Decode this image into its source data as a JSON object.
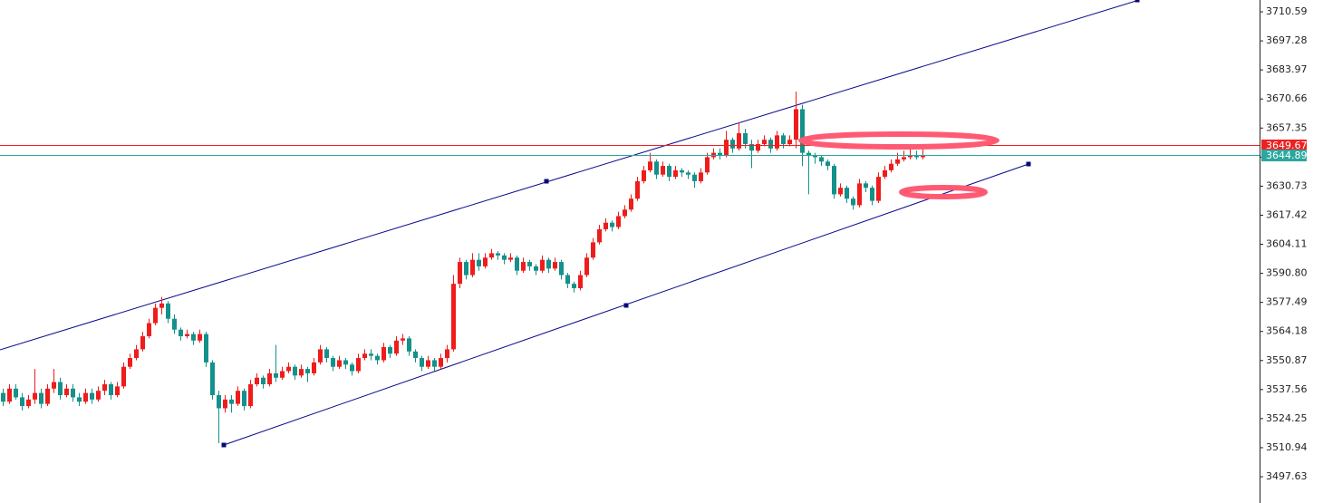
{
  "chart_data": {
    "type": "candlestick",
    "ohlc": [
      [
        3536,
        3538,
        3530,
        3532
      ],
      [
        3532,
        3540,
        3531,
        3538
      ],
      [
        3538,
        3540,
        3533,
        3534
      ],
      [
        3534,
        3536,
        3528,
        3530
      ],
      [
        3530,
        3535,
        3529,
        3533
      ],
      [
        3533,
        3547,
        3531,
        3536
      ],
      [
        3536,
        3538,
        3529,
        3531
      ],
      [
        3531,
        3540,
        3530,
        3538
      ],
      [
        3538,
        3547,
        3536,
        3541
      ],
      [
        3541,
        3543,
        3533,
        3535
      ],
      [
        3535,
        3540,
        3534,
        3538
      ],
      [
        3538,
        3540,
        3532,
        3534
      ],
      [
        3534,
        3536,
        3530,
        3532
      ],
      [
        3532,
        3538,
        3531,
        3536
      ],
      [
        3536,
        3538,
        3531,
        3533
      ],
      [
        3533,
        3539,
        3532,
        3537
      ],
      [
        3537,
        3542,
        3535,
        3540
      ],
      [
        3540,
        3541,
        3533,
        3535
      ],
      [
        3535,
        3541,
        3534,
        3539
      ],
      [
        3539,
        3550,
        3538,
        3548
      ],
      [
        3548,
        3554,
        3547,
        3552
      ],
      [
        3552,
        3558,
        3551,
        3556
      ],
      [
        3556,
        3564,
        3555,
        3562
      ],
      [
        3562,
        3570,
        3561,
        3568
      ],
      [
        3568,
        3577,
        3567,
        3575
      ],
      [
        3575,
        3580,
        3572,
        3577
      ],
      [
        3577,
        3578,
        3568,
        3570
      ],
      [
        3570,
        3572,
        3563,
        3565
      ],
      [
        3565,
        3566,
        3560,
        3562
      ],
      [
        3562,
        3565,
        3561,
        3563
      ],
      [
        3563,
        3564,
        3558,
        3560
      ],
      [
        3560,
        3565,
        3559,
        3563
      ],
      [
        3563,
        3564,
        3548,
        3550
      ],
      [
        3550,
        3551,
        3533,
        3535
      ],
      [
        3535,
        3537,
        3513,
        3529
      ],
      [
        3529,
        3535,
        3527,
        3533
      ],
      [
        3533,
        3535,
        3527,
        3531
      ],
      [
        3531,
        3539,
        3530,
        3537
      ],
      [
        3537,
        3538,
        3528,
        3530
      ],
      [
        3530,
        3542,
        3529,
        3540
      ],
      [
        3540,
        3545,
        3539,
        3543
      ],
      [
        3543,
        3544,
        3538,
        3540
      ],
      [
        3540,
        3547,
        3539,
        3545
      ],
      [
        3545,
        3558,
        3541,
        3543
      ],
      [
        3543,
        3548,
        3542,
        3546
      ],
      [
        3546,
        3550,
        3545,
        3548
      ],
      [
        3548,
        3549,
        3542,
        3544
      ],
      [
        3544,
        3549,
        3543,
        3547
      ],
      [
        3547,
        3548,
        3541,
        3545
      ],
      [
        3545,
        3552,
        3544,
        3550
      ],
      [
        3550,
        3558,
        3549,
        3556
      ],
      [
        3556,
        3557,
        3550,
        3552
      ],
      [
        3552,
        3553,
        3546,
        3548
      ],
      [
        3548,
        3553,
        3547,
        3551
      ],
      [
        3551,
        3552,
        3547,
        3549
      ],
      [
        3549,
        3550,
        3544,
        3546
      ],
      [
        3546,
        3554,
        3545,
        3552
      ],
      [
        3552,
        3556,
        3551,
        3554
      ],
      [
        3554,
        3556,
        3551,
        3553
      ],
      [
        3553,
        3554,
        3549,
        3551
      ],
      [
        3551,
        3559,
        3550,
        3557
      ],
      [
        3557,
        3558,
        3552,
        3554
      ],
      [
        3554,
        3562,
        3553,
        3560
      ],
      [
        3560,
        3563,
        3558,
        3561
      ],
      [
        3561,
        3562,
        3553,
        3555
      ],
      [
        3555,
        3556,
        3550,
        3552
      ],
      [
        3552,
        3553,
        3546,
        3548
      ],
      [
        3548,
        3553,
        3547,
        3551
      ],
      [
        3551,
        3552,
        3546,
        3548
      ],
      [
        3548,
        3554,
        3547,
        3552
      ],
      [
        3552,
        3558,
        3550,
        3556
      ],
      [
        3556,
        3590,
        3555,
        3586
      ],
      [
        3586,
        3598,
        3584,
        3596
      ],
      [
        3596,
        3597,
        3588,
        3590
      ],
      [
        3590,
        3600,
        3589,
        3597
      ],
      [
        3597,
        3600,
        3592,
        3594
      ],
      [
        3594,
        3600,
        3593,
        3598
      ],
      [
        3598,
        3602,
        3597,
        3600
      ],
      [
        3600,
        3601,
        3597,
        3599
      ],
      [
        3599,
        3600,
        3595,
        3597
      ],
      [
        3597,
        3600,
        3596,
        3598
      ],
      [
        3598,
        3599,
        3590,
        3592
      ],
      [
        3592,
        3598,
        3591,
        3596
      ],
      [
        3596,
        3597,
        3592,
        3594
      ],
      [
        3594,
        3595,
        3590,
        3592
      ],
      [
        3592,
        3599,
        3591,
        3597
      ],
      [
        3597,
        3598,
        3591,
        3593
      ],
      [
        3593,
        3598,
        3592,
        3596
      ],
      [
        3596,
        3597,
        3588,
        3590
      ],
      [
        3590,
        3591,
        3584,
        3586
      ],
      [
        3586,
        3587,
        3582,
        3584
      ],
      [
        3584,
        3592,
        3583,
        3590
      ],
      [
        3590,
        3600,
        3589,
        3598
      ],
      [
        3598,
        3607,
        3597,
        3605
      ],
      [
        3605,
        3613,
        3604,
        3611
      ],
      [
        3611,
        3616,
        3610,
        3614
      ],
      [
        3614,
        3615,
        3610,
        3612
      ],
      [
        3612,
        3619,
        3611,
        3617
      ],
      [
        3617,
        3622,
        3616,
        3620
      ],
      [
        3620,
        3627,
        3619,
        3625
      ],
      [
        3625,
        3635,
        3624,
        3633
      ],
      [
        3633,
        3640,
        3632,
        3638
      ],
      [
        3638,
        3646,
        3637,
        3642
      ],
      [
        3642,
        3643,
        3634,
        3636
      ],
      [
        3636,
        3642,
        3635,
        3640
      ],
      [
        3640,
        3641,
        3633,
        3635
      ],
      [
        3635,
        3640,
        3634,
        3638
      ],
      [
        3638,
        3639,
        3635,
        3637
      ],
      [
        3637,
        3638,
        3634,
        3636
      ],
      [
        3636,
        3637,
        3630,
        3633
      ],
      [
        3633,
        3639,
        3632,
        3637
      ],
      [
        3637,
        3646,
        3636,
        3644
      ],
      [
        3644,
        3648,
        3643,
        3646
      ],
      [
        3646,
        3648,
        3643,
        3645
      ],
      [
        3645,
        3656,
        3644,
        3652
      ],
      [
        3652,
        3653,
        3646,
        3648
      ],
      [
        3648,
        3660,
        3647,
        3655
      ],
      [
        3655,
        3657,
        3648,
        3650
      ],
      [
        3650,
        3652,
        3639,
        3647
      ],
      [
        3647,
        3652,
        3646,
        3650
      ],
      [
        3650,
        3654,
        3649,
        3652
      ],
      [
        3652,
        3653,
        3646,
        3648
      ],
      [
        3648,
        3656,
        3647,
        3654
      ],
      [
        3654,
        3655,
        3648,
        3650
      ],
      [
        3650,
        3654,
        3649,
        3652
      ],
      [
        3652,
        3674,
        3648,
        3666
      ],
      [
        3666,
        3668,
        3640,
        3646
      ],
      [
        3646,
        3647,
        3627,
        3645
      ],
      [
        3645,
        3646,
        3641,
        3644
      ],
      [
        3644,
        3645,
        3640,
        3642
      ],
      [
        3642,
        3643,
        3638,
        3640
      ],
      [
        3640,
        3641,
        3625,
        3627
      ],
      [
        3627,
        3632,
        3626,
        3630
      ],
      [
        3630,
        3631,
        3623,
        3625
      ],
      [
        3625,
        3626,
        3620,
        3622
      ],
      [
        3622,
        3634,
        3621,
        3632
      ],
      [
        3632,
        3633,
        3628,
        3630
      ],
      [
        3630,
        3631,
        3622,
        3624
      ],
      [
        3624,
        3637,
        3623,
        3635
      ],
      [
        3635,
        3640,
        3634,
        3638
      ],
      [
        3638,
        3643,
        3637,
        3641
      ],
      [
        3641,
        3646,
        3640,
        3643
      ],
      [
        3643,
        3647,
        3642,
        3644
      ],
      [
        3644,
        3648,
        3643,
        3645
      ],
      [
        3645,
        3647,
        3643,
        3644
      ],
      [
        3644,
        3648,
        3643,
        3645
      ]
    ],
    "up_color": "#ef1c1c",
    "down_color": "#13918a",
    "ylim": [
      3485.6,
      3716.0
    ],
    "yticks": [
      3497.63,
      3510.94,
      3524.25,
      3537.56,
      3550.87,
      3564.18,
      3577.49,
      {
        "value": 3590.8,
        "label": "3590.80"
      },
      3604.11,
      3617.42,
      3630.73,
      3644.04,
      3657.35,
      3670.66,
      3683.97,
      3697.28,
      3710.59
    ],
    "price_lines": [
      {
        "value": 3649.67,
        "color": "#ef2020"
      },
      {
        "value": 3644.89,
        "color": "#2ba79e"
      }
    ]
  }
}
